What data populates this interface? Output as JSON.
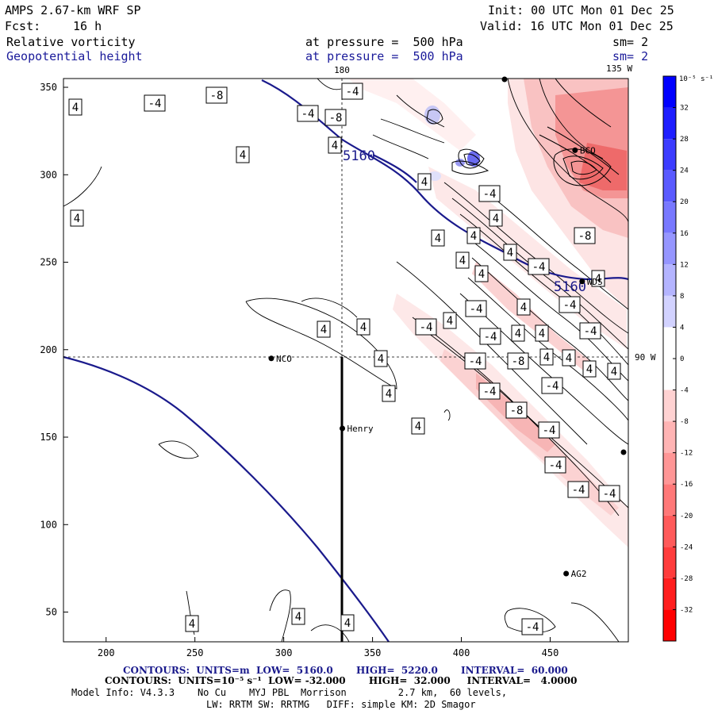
{
  "header": {
    "model": "AMPS 2.67-km WRF SP",
    "init": "Init: 00 UTC Mon 01 Dec 25",
    "fcst_label": "Fcst:",
    "fcst_value": "16 h",
    "valid": "Valid: 16 UTC Mon 01 Dec 25"
  },
  "fields": [
    {
      "name": "Relative vorticity",
      "pressure": "at pressure =  500 hPa",
      "sm": "sm= 2"
    },
    {
      "name": "Geopotential height",
      "pressure": "at pressure =  500 hPa",
      "sm": "sm= 2"
    }
  ],
  "map": {
    "lon_labels": {
      "top_center": "180",
      "top_right": "135 W",
      "right_middle": "90 W"
    },
    "x_axis": {
      "min": 176,
      "max": 494,
      "ticks": [
        200,
        250,
        300,
        350,
        400,
        450
      ]
    },
    "y_axis": {
      "min": 33,
      "max": 355,
      "ticks": [
        50,
        100,
        150,
        200,
        250,
        300,
        350
      ]
    },
    "stations": [
      {
        "name": "NCO",
        "x": 293,
        "y": 195
      },
      {
        "name": "Henry",
        "x": 333,
        "y": 155
      },
      {
        "name": "AG2",
        "x": 459,
        "y": 72
      },
      {
        "name": "WDS",
        "x": 468,
        "y": 239
      },
      {
        "name": "BCO",
        "x": 464,
        "y": 314
      }
    ],
    "contour_labels": {
      "height": [
        "5160",
        "5160"
      ],
      "vorticity": [
        "4",
        "-4",
        "-8"
      ]
    }
  },
  "colorbar": {
    "unit": "10⁻⁵ s⁻¹",
    "levels": [
      32,
      28,
      24,
      20,
      16,
      12,
      8,
      4,
      0,
      -4,
      -8,
      -12,
      -16,
      -20,
      -24,
      -28,
      -32
    ],
    "positive_color": "#0000ff",
    "negative_color": "#ff0000"
  },
  "footer": {
    "line1": "CONTOURS:  UNITS=m  LOW=  5160.0       HIGH=  5220.0       INTERVAL=  60.000",
    "line2": "CONTOURS:  UNITS=10⁻⁵ s⁻¹  LOW= -32.000       HIGH=  32.000     INTERVAL=   4.0000",
    "line3": "Model Info: V4.3.3    No Cu    MYJ PBL  Morrison         2.7 km,  60 levels,",
    "line4": "LW: RRTM SW: RRTMG   DIFF: simple KM: 2D Smagor"
  }
}
